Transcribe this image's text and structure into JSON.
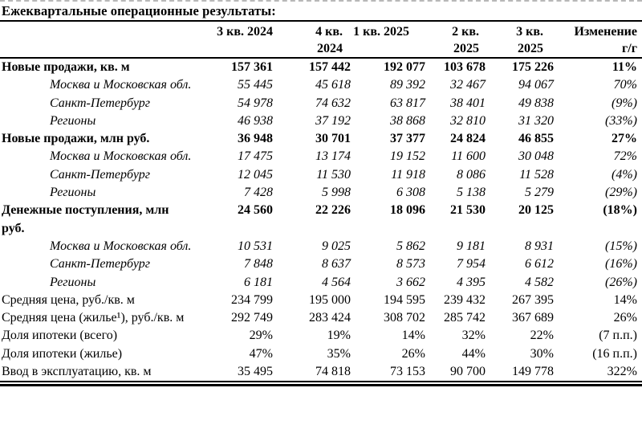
{
  "title": "Ежеквартальные операционные результаты:",
  "colors": {
    "text": "#000000",
    "background": "#ffffff",
    "rule": "#000000"
  },
  "table": {
    "columns": [
      {
        "l1": "3 кв. 2024",
        "l2": ""
      },
      {
        "l1": "4 кв.",
        "l2": "2024"
      },
      {
        "l1": "1 кв. 2025",
        "l2": ""
      },
      {
        "l1": "2 кв.",
        "l2": "2025"
      },
      {
        "l1": "3 кв.",
        "l2": "2025"
      },
      {
        "l1": "Изменение",
        "l2": "г/г"
      }
    ],
    "rows": [
      {
        "label": "Новые продажи, кв. м",
        "kind": "section",
        "values": [
          "157 361",
          "157 442",
          "192 077",
          "103 678",
          "175 226",
          "11%"
        ]
      },
      {
        "label": "Москва и Московская обл.",
        "kind": "region",
        "values": [
          "55 445",
          "45 618",
          "89 392",
          "32 467",
          "94 067",
          "70%"
        ]
      },
      {
        "label": "Санкт-Петербург",
        "kind": "region",
        "values": [
          "54 978",
          "74 632",
          "63 817",
          "38 401",
          "49 838",
          "(9%)"
        ]
      },
      {
        "label": "Регионы",
        "kind": "region",
        "values": [
          "46 938",
          "37 192",
          "38 868",
          "32 810",
          "31 320",
          "(33%)"
        ]
      },
      {
        "label": "Новые продажи, млн руб.",
        "kind": "section",
        "values": [
          "36 948",
          "30 701",
          "37 377",
          "24 824",
          "46 855",
          "27%"
        ]
      },
      {
        "label": "Москва и Московская обл.",
        "kind": "region",
        "values": [
          "17 475",
          "13 174",
          "19 152",
          "11 600",
          "30 048",
          "72%"
        ]
      },
      {
        "label": "Санкт-Петербург",
        "kind": "region",
        "values": [
          "12 045",
          "11 530",
          "11 918",
          "8 086",
          "11 528",
          "(4%)"
        ]
      },
      {
        "label": "Регионы",
        "kind": "region",
        "values": [
          "7 428",
          "5 998",
          "6 308",
          "5 138",
          "5 279",
          "(29%)"
        ]
      },
      {
        "label": "Денежные поступления, млн руб.",
        "kind": "section",
        "values": [
          "24 560",
          "22 226",
          "18 096",
          "21 530",
          "20 125",
          "(18%)"
        ]
      },
      {
        "label": "Москва и Московская обл.",
        "kind": "region",
        "values": [
          "10 531",
          "9 025",
          "5 862",
          "9 181",
          "8 931",
          "(15%)"
        ]
      },
      {
        "label": "Санкт-Петербург",
        "kind": "region",
        "values": [
          "7 848",
          "8 637",
          "8 573",
          "7 954",
          "6 612",
          "(16%)"
        ]
      },
      {
        "label": "Регионы",
        "kind": "region",
        "values": [
          "6 181",
          "4 564",
          "3 662",
          "4 395",
          "4 582",
          "(26%)"
        ]
      },
      {
        "label": "Средняя цена, руб./кв. м",
        "kind": "plain",
        "values": [
          "234 799",
          "195 000",
          "194 595",
          "239 432",
          "267 395",
          "14%"
        ]
      },
      {
        "label": "Средняя цена (жилье¹), руб./кв. м",
        "kind": "plain",
        "values": [
          "292 749",
          "283 424",
          "308 702",
          "285 742",
          "367 689",
          "26%"
        ]
      },
      {
        "label": "Доля ипотеки (всего)",
        "kind": "plain",
        "values": [
          "29%",
          "19%",
          "14%",
          "32%",
          "22%",
          "(7 п.п.)"
        ]
      },
      {
        "label": "Доля ипотеки (жилье)",
        "kind": "plain",
        "values": [
          "47%",
          "35%",
          "26%",
          "44%",
          "30%",
          "(16 п.п.)"
        ]
      },
      {
        "label": "Ввод в эксплуатацию, кв. м",
        "kind": "plain",
        "values": [
          "35 495",
          "74 818",
          "73 153",
          "90 700",
          "149 778",
          "322%"
        ]
      }
    ]
  }
}
